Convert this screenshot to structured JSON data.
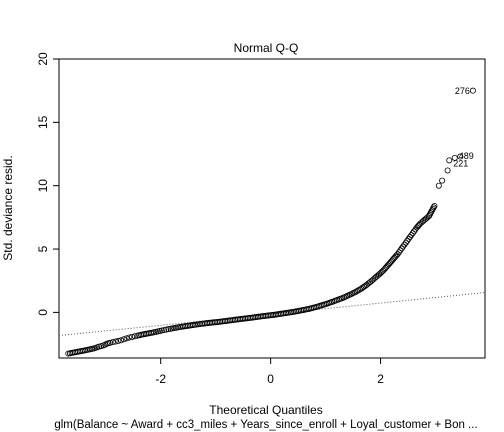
{
  "chart_data": {
    "type": "scatter",
    "title": "Normal Q-Q",
    "xlabel": "Theoretical Quantiles",
    "ylabel": "Std. deviance resid.",
    "subtitle": "glm(Balance ~ Award + cc3_miles + Years_since_enroll + Loyal_customer + Bon ...",
    "xlim": [
      -3.85,
      3.9
    ],
    "ylim": [
      -3.6,
      20.0
    ],
    "x_ticks": [
      -2,
      0,
      2
    ],
    "y_ticks": [
      0,
      5,
      10,
      15,
      20
    ],
    "grid": false,
    "reference_line": {
      "style": "dotted",
      "x1": -3.85,
      "y1": -1.83,
      "x2": 3.9,
      "y2": 1.57
    },
    "outliers": [
      {
        "label": "276",
        "x": 3.68,
        "y": 17.5
      },
      {
        "label": "489",
        "x": 3.35,
        "y": 12.2
      },
      {
        "label": "221",
        "x": 3.25,
        "y": 12.0
      }
    ],
    "points": [
      [
        -3.68,
        -3.25
      ],
      [
        -3.38,
        -3.0
      ],
      [
        -3.22,
        -2.85
      ],
      [
        -3.12,
        -2.7
      ],
      [
        -3.04,
        -2.6
      ],
      [
        -2.98,
        -2.48
      ],
      [
        -2.92,
        -2.4
      ],
      [
        -2.87,
        -2.35
      ],
      [
        -2.82,
        -2.3
      ],
      [
        -2.77,
        -2.25
      ],
      [
        -2.72,
        -2.2
      ],
      [
        -2.67,
        -2.12
      ],
      [
        -2.62,
        -2.05
      ],
      [
        -2.57,
        -1.98
      ],
      [
        -2.52,
        -1.93
      ],
      [
        -2.47,
        -1.88
      ],
      [
        -2.42,
        -1.83
      ],
      [
        -2.36,
        -1.77
      ],
      [
        -2.3,
        -1.72
      ],
      [
        -2.24,
        -1.67
      ],
      [
        -2.18,
        -1.62
      ],
      [
        -2.12,
        -1.57
      ],
      [
        -2.05,
        -1.5
      ],
      [
        -1.98,
        -1.43
      ],
      [
        -1.9,
        -1.36
      ],
      [
        -1.82,
        -1.29
      ],
      [
        -1.72,
        -1.21
      ],
      [
        -1.62,
        -1.13
      ],
      [
        -1.5,
        -1.05
      ],
      [
        -1.38,
        -0.98
      ],
      [
        -1.25,
        -0.9
      ],
      [
        -1.1,
        -0.82
      ],
      [
        -0.95,
        -0.75
      ],
      [
        -0.8,
        -0.67
      ],
      [
        -0.65,
        -0.58
      ],
      [
        -0.5,
        -0.5
      ],
      [
        -0.35,
        -0.42
      ],
      [
        -0.2,
        -0.33
      ],
      [
        -0.05,
        -0.25
      ],
      [
        0.1,
        -0.17
      ],
      [
        0.25,
        -0.07
      ],
      [
        0.4,
        0.03
      ],
      [
        0.55,
        0.15
      ],
      [
        0.7,
        0.28
      ],
      [
        0.85,
        0.45
      ],
      [
        1.0,
        0.65
      ],
      [
        1.15,
        0.88
      ],
      [
        1.3,
        1.12
      ],
      [
        1.42,
        1.35
      ],
      [
        1.54,
        1.6
      ],
      [
        1.65,
        1.88
      ],
      [
        1.75,
        2.18
      ],
      [
        1.84,
        2.5
      ],
      [
        1.92,
        2.8
      ],
      [
        2.0,
        3.1
      ],
      [
        2.07,
        3.4
      ],
      [
        2.13,
        3.7
      ],
      [
        2.19,
        4.0
      ],
      [
        2.25,
        4.3
      ],
      [
        2.31,
        4.6
      ],
      [
        2.36,
        4.9
      ],
      [
        2.41,
        5.2
      ],
      [
        2.46,
        5.5
      ],
      [
        2.51,
        5.8
      ],
      [
        2.56,
        6.1
      ],
      [
        2.61,
        6.4
      ],
      [
        2.66,
        6.7
      ],
      [
        2.72,
        7.0
      ],
      [
        2.8,
        7.3
      ],
      [
        2.88,
        7.6
      ],
      [
        2.98,
        8.4
      ],
      [
        3.06,
        10.0
      ],
      [
        3.12,
        10.4
      ],
      [
        3.22,
        11.2
      ],
      [
        3.25,
        12.0
      ],
      [
        3.35,
        12.2
      ],
      [
        3.45,
        12.3
      ],
      [
        3.68,
        17.5
      ]
    ]
  }
}
